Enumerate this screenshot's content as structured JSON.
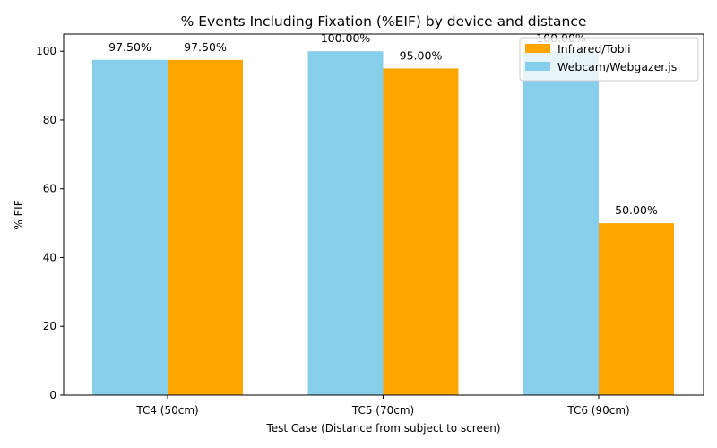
{
  "chart_data": {
    "type": "bar",
    "title": "% Events Including Fixation (%EIF) by device and distance",
    "xlabel": "Test Case (Distance from subject to screen)",
    "ylabel": "% EIF",
    "categories": [
      "TC4 (50cm)",
      "TC5 (70cm)",
      "TC6 (90cm)"
    ],
    "series": [
      {
        "name": "Webcam/Webgazer.js",
        "color": "#87CEEB",
        "values": [
          97.5,
          100.0,
          100.0
        ],
        "labels": [
          "97.50%",
          "100.00%",
          "100.00%"
        ]
      },
      {
        "name": "Infrared/Tobii",
        "color": "#FFA500",
        "values": [
          97.5,
          95.0,
          50.0
        ],
        "labels": [
          "97.50%",
          "95.00%",
          "50.00%"
        ]
      }
    ],
    "legend_order": [
      1,
      0
    ],
    "yticks": [
      0,
      20,
      40,
      60,
      80,
      100
    ],
    "ylim": [
      0,
      105
    ],
    "grid": false,
    "legend_position": "top-right"
  }
}
